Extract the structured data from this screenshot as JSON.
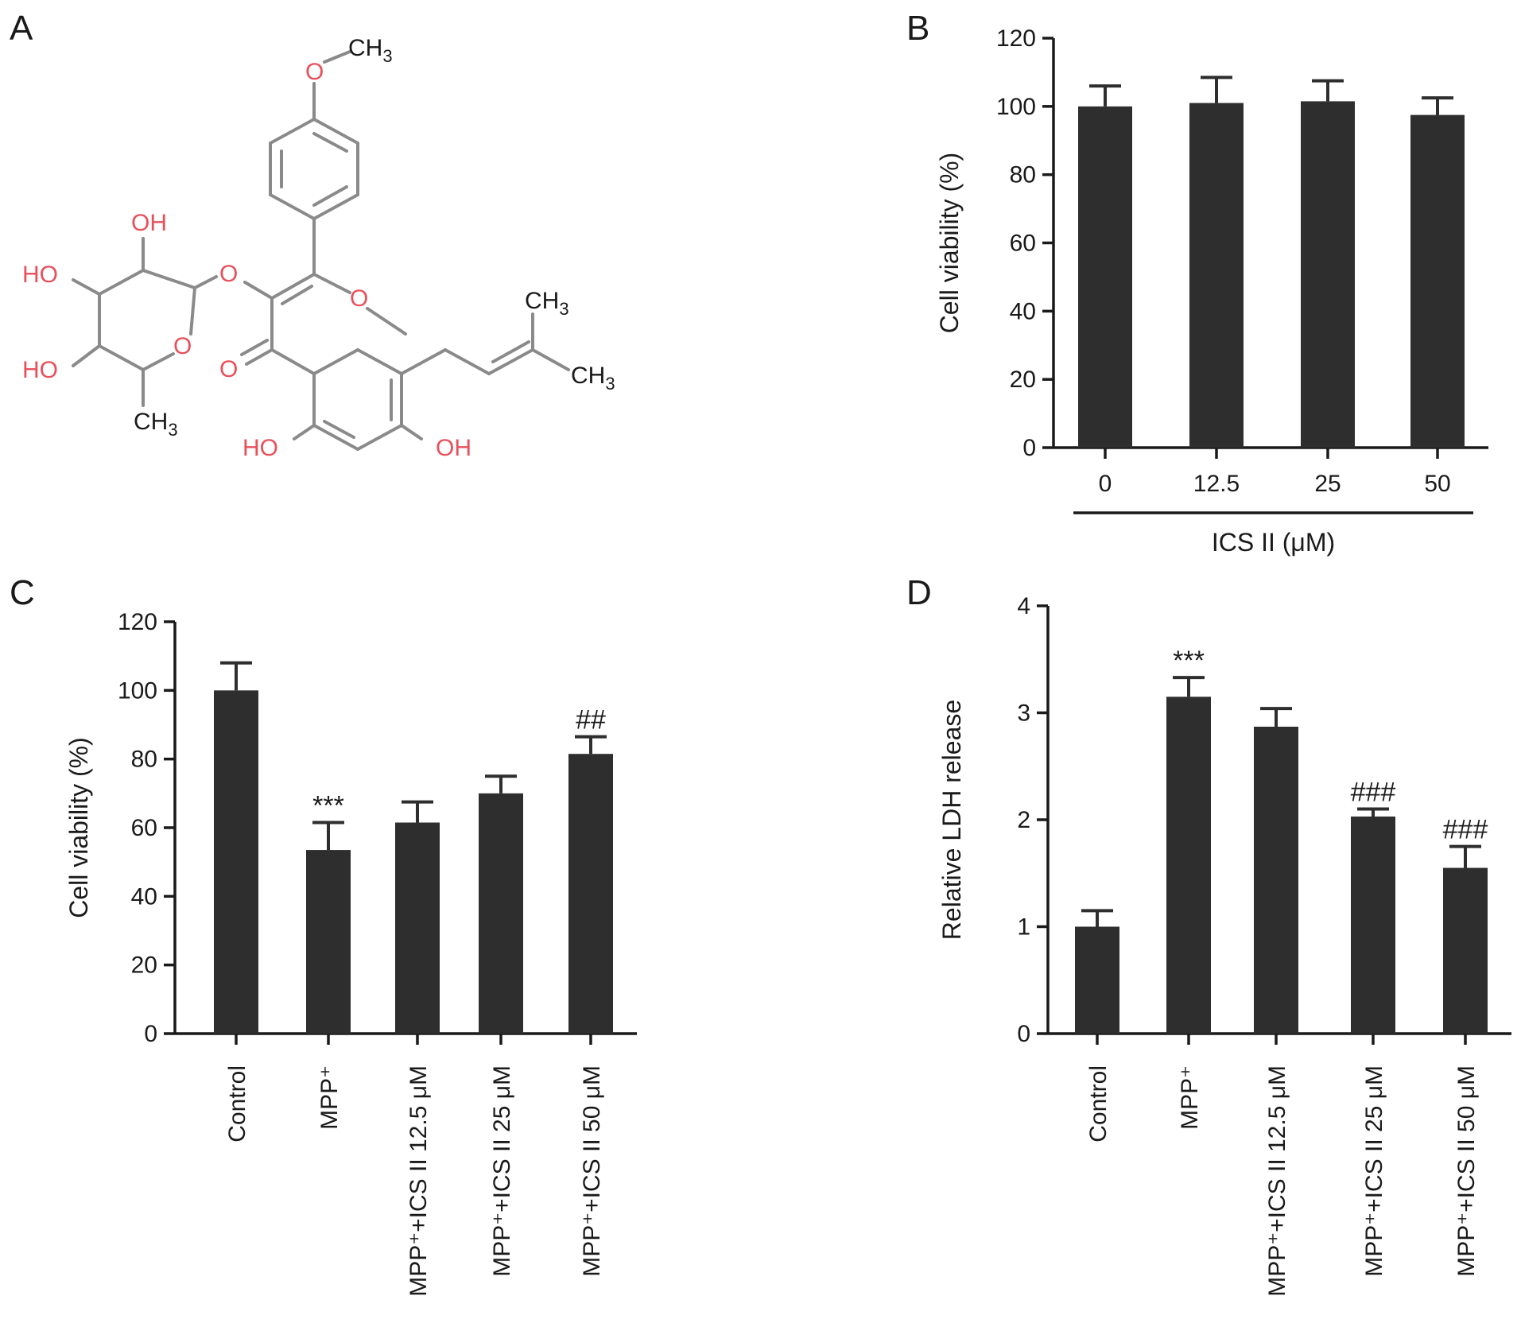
{
  "panels": {
    "a": "A",
    "b": "B",
    "c": "C",
    "d": "D"
  },
  "structure": {
    "o_methoxy": "O",
    "ch3_methoxy": "CH3",
    "oh_sugar_top": "OH",
    "ho_sugar_left_top": "HO",
    "ho_sugar_left_bottom": "HO",
    "o_sugar_ring": "O",
    "ch3_sugar": "CH3",
    "o_glycoside": "O",
    "o_pyran": "O",
    "o_keto": "O",
    "ho_5": "HO",
    "oh_7": "OH",
    "ch3_prenyl_top": "CH3",
    "ch3_prenyl_bottom": "CH3"
  },
  "chart_data": [
    {
      "panel": "B",
      "type": "bar",
      "categories": [
        "0",
        "12.5",
        "25",
        "50"
      ],
      "values": [
        100,
        101,
        101.5,
        97.5
      ],
      "errors": [
        6,
        7.5,
        6,
        5
      ],
      "xlabel": "ICS II (μM)",
      "ylabel": "Cell viability (%)",
      "ylim": [
        0,
        120
      ],
      "yticks": [
        "0",
        "20",
        "40",
        "60",
        "80",
        "100",
        "120"
      ],
      "significance": [
        "",
        "",
        "",
        ""
      ]
    },
    {
      "panel": "C",
      "type": "bar",
      "categories": [
        "Control",
        "MPP⁺",
        "MPP⁺+ICS II 12.5 μM",
        "MPP⁺+ICS II 25 μM",
        "MPP⁺+ICS II 50 μM"
      ],
      "values": [
        100,
        53.5,
        61.5,
        70,
        81.5
      ],
      "errors": [
        8,
        8,
        6,
        5,
        5
      ],
      "xlabel": "",
      "ylabel": "Cell viability (%)",
      "ylim": [
        0,
        120
      ],
      "yticks": [
        "0",
        "20",
        "40",
        "60",
        "80",
        "100",
        "120"
      ],
      "significance": [
        "",
        "***",
        "",
        "",
        "##"
      ]
    },
    {
      "panel": "D",
      "type": "bar",
      "categories": [
        "Control",
        "MPP⁺",
        "MPP⁺+ICS II 12.5 μM",
        "MPP⁺+ICS II 25 μM",
        "MPP⁺+ICS II 50 μM"
      ],
      "values": [
        1.0,
        3.15,
        2.87,
        2.03,
        1.55
      ],
      "errors": [
        0.15,
        0.18,
        0.17,
        0.07,
        0.2
      ],
      "xlabel": "",
      "ylabel": "Relative LDH release",
      "ylim": [
        0,
        4
      ],
      "yticks": [
        "0",
        "1",
        "2",
        "3",
        "4"
      ],
      "significance": [
        "",
        "***",
        "",
        "###",
        "###"
      ]
    }
  ]
}
